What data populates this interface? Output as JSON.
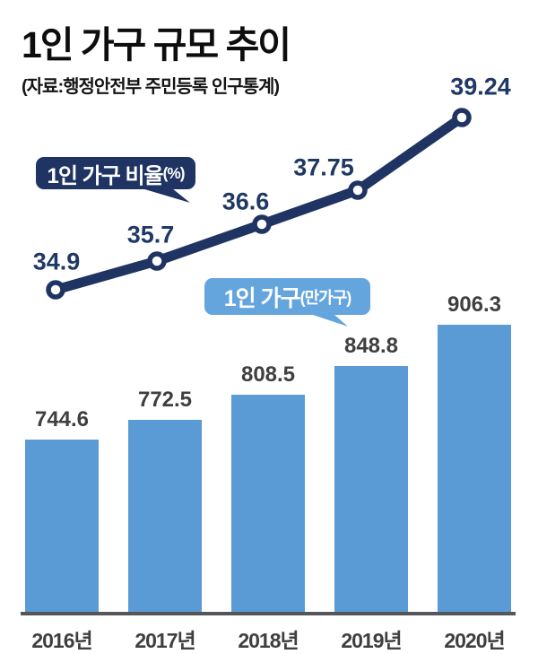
{
  "header": {
    "title": "1인 가구 규모 추이",
    "source": "(자료:행정안전부 주민등록 인구통계)"
  },
  "badges": {
    "line": {
      "text": "1인 가구 비율",
      "unit": "(%)"
    },
    "bar": {
      "text": "1인 가구",
      "unit": "(만가구)"
    }
  },
  "colors": {
    "navy": "#1f3462",
    "navy_text": "#1f3864",
    "bar_blue": "#5b9bd5",
    "badge_blue": "#64a5de",
    "axis_gray": "#55565a",
    "value_gray": "#3f3f3f"
  },
  "chart_data": [
    {
      "type": "line",
      "name": "1인 가구 비율(%)",
      "categories": [
        "2016년",
        "2017년",
        "2018년",
        "2019년",
        "2020년"
      ],
      "values": [
        34.9,
        35.7,
        36.6,
        37.75,
        39.24
      ],
      "value_labels": [
        "34.9",
        "35.7",
        "36.6",
        "37.75",
        "39.24"
      ],
      "color": "#1f3462",
      "marker": "open-circle",
      "grid": false,
      "legend_position": "callout-badge"
    },
    {
      "type": "bar",
      "name": "1인 가구(만가구)",
      "categories": [
        "2016년",
        "2017년",
        "2018년",
        "2019년",
        "2020년"
      ],
      "values": [
        744.6,
        772.5,
        808.5,
        848.8,
        906.3
      ],
      "value_labels": [
        "744.6",
        "772.5",
        "808.5",
        "848.8",
        "906.3"
      ],
      "color": "#5b9bd5",
      "baseline_truncated": true,
      "grid": false,
      "legend_position": "callout-badge"
    }
  ]
}
